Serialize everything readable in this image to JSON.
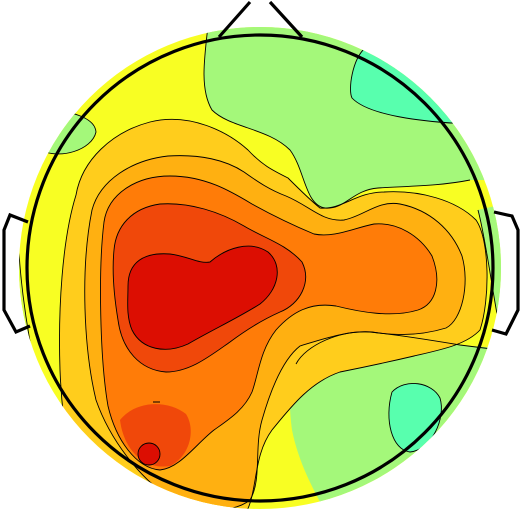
{
  "figure": {
    "type": "scalp-topographic-map",
    "colors": {
      "background": "#ffffff",
      "aqua": "#58ffae",
      "light_green": "#a4f87a",
      "yellow_green": "#d4fb40",
      "yellow": "#f8fe23",
      "yellow_orange": "#ffcd1c",
      "orange": "#ffb011",
      "dark_orange": "#ff7c08",
      "red_orange": "#f0480a",
      "red": "#dc0e02",
      "outline": "#000000"
    },
    "regions": [
      {
        "name": "peak-left-central",
        "level": "max"
      },
      {
        "name": "right-temporal-lobe",
        "level": "high"
      },
      {
        "name": "left-parietal-occipital",
        "level": "high"
      },
      {
        "name": "frontal-right",
        "level": "low"
      },
      {
        "name": "right-parietal-spot",
        "level": "min"
      }
    ]
  }
}
